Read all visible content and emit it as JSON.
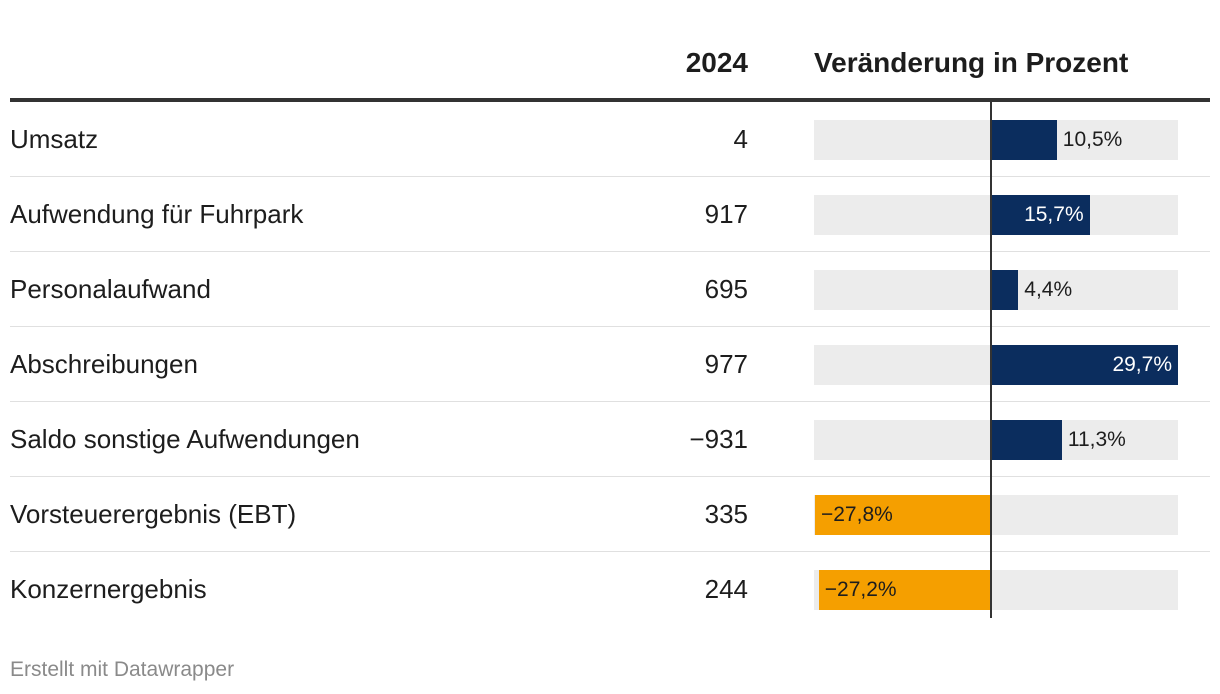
{
  "header": {
    "year_label": "2024",
    "change_label": "Veränderung in Prozent"
  },
  "colors": {
    "positive": "#0b2d5e",
    "negative": "#f59f00",
    "track": "#ececec"
  },
  "chart_data": {
    "type": "bar",
    "orientation": "horizontal",
    "categories": [
      "Umsatz",
      "Aufwendung für Fuhrpark",
      "Personalaufwand",
      "Abschreibungen",
      "Saldo sonstige Aufwendungen",
      "Vorsteuerergebnis (EBT)",
      "Konzernergebnis"
    ],
    "values_2024": [
      "4",
      "917",
      "695",
      "977",
      "−931",
      "335",
      "244"
    ],
    "series": [
      {
        "values": [
          10.5,
          15.7,
          4.4,
          29.7,
          11.3,
          -27.8,
          -27.2
        ],
        "labels": [
          "10,5%",
          "15,7%",
          "4,4%",
          "29,7%",
          "11,3%",
          "−27,8%",
          "−27,2%"
        ]
      }
    ],
    "xlim": [
      -29.7,
      29.7
    ]
  },
  "footer": {
    "credit": "Erstellt mit Datawrapper"
  }
}
